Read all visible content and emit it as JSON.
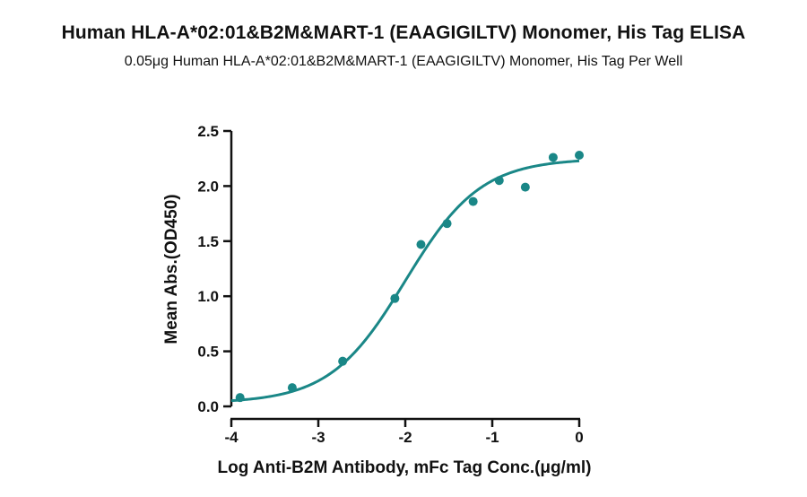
{
  "chart_data": {
    "type": "scatter",
    "title": "Human HLA-A*02:01&B2M&MART-1 (EAAGIGILTV) Monomer, His Tag ELISA",
    "subtitle": "0.05μg Human HLA-A*02:01&B2M&MART-1 (EAAGIGILTV) Monomer, His Tag Per Well",
    "xlabel": "Log Anti-B2M Antibody, mFc Tag Conc.(μg/ml)",
    "ylabel": "Mean Abs.(OD450)",
    "xlim": [
      -4,
      0
    ],
    "ylim": [
      0,
      2.5
    ],
    "x_ticks": [
      "-4",
      "-3",
      "-2",
      "-1",
      "0"
    ],
    "y_ticks": [
      "0.0",
      "0.5",
      "1.0",
      "1.5",
      "2.0",
      "2.5"
    ],
    "grid": false,
    "colors": {
      "series": "#1a8787",
      "axis": "#111111"
    },
    "series": [
      {
        "x": [
          -3.9,
          -3.3,
          -2.72,
          -2.12,
          -1.82,
          -1.52,
          -1.22,
          -0.92,
          -0.62,
          -0.3,
          0.0
        ],
        "y": [
          0.08,
          0.17,
          0.41,
          0.98,
          1.47,
          1.66,
          1.86,
          2.05,
          1.99,
          2.26,
          2.28
        ],
        "fit": {
          "model": "4PL sigmoid",
          "bottom": 0.03,
          "top": 2.25,
          "logEC50": -2.0,
          "hill": 1.0
        }
      }
    ]
  }
}
